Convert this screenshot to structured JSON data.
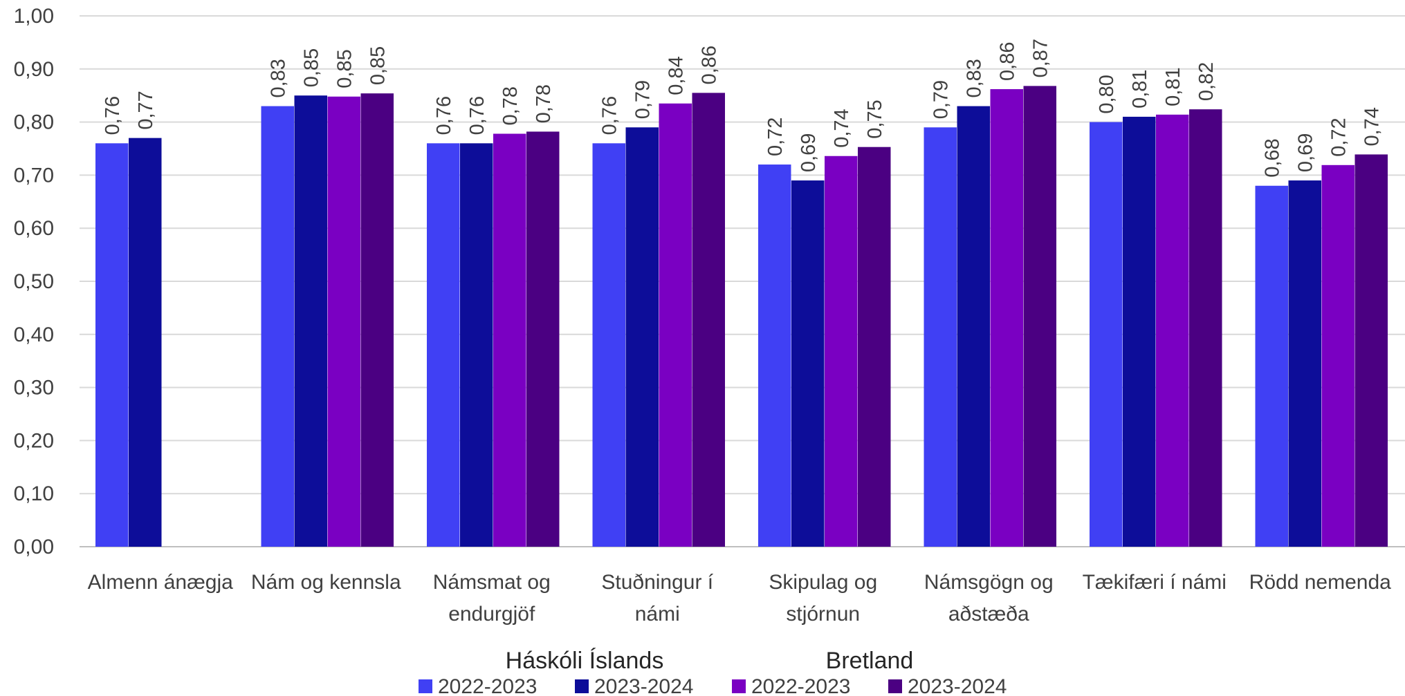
{
  "chart_data": {
    "type": "bar",
    "title": "",
    "xlabel": "",
    "ylabel": "",
    "ylim": [
      0,
      1
    ],
    "yticks": [
      "0,00",
      "0,10",
      "0,20",
      "0,30",
      "0,40",
      "0,50",
      "0,60",
      "0,70",
      "0,80",
      "0,90",
      "1,00"
    ],
    "grid": true,
    "legend_position": "bottom",
    "categories": [
      [
        "Almenn ánægja"
      ],
      [
        "Nám og kennsla"
      ],
      [
        "Námsmat og",
        "endurgjöf"
      ],
      [
        "Stuðningur í",
        "námi"
      ],
      [
        "Skipulag og",
        "stjórnun"
      ],
      [
        "Námsgögn og",
        "aðstæða"
      ],
      [
        "Tækifæri í námi"
      ],
      [
        "Rödd nemenda"
      ]
    ],
    "legend_groups": [
      "Háskóli Íslands",
      "Bretland"
    ],
    "series": [
      {
        "name": "2022-2023",
        "group": "Háskóli Íslands",
        "color": "#4040f4",
        "values": [
          0.76,
          0.83,
          0.76,
          0.76,
          0.72,
          0.79,
          0.8,
          0.68
        ],
        "labels": [
          "0,76",
          "0,83",
          "0,76",
          "0,76",
          "0,72",
          "0,79",
          "0,80",
          "0,68"
        ]
      },
      {
        "name": "2023-2024",
        "group": "Háskóli Íslands",
        "color": "#0d0d99",
        "values": [
          0.77,
          0.85,
          0.76,
          0.79,
          0.69,
          0.83,
          0.81,
          0.69
        ],
        "labels": [
          "0,77",
          "0,85",
          "0,76",
          "0,79",
          "0,69",
          "0,83",
          "0,81",
          "0,69"
        ]
      },
      {
        "name": "2022-2023",
        "group": "Bretland",
        "color": "#7a00c2",
        "values": [
          null,
          0.848,
          0.778,
          0.835,
          0.736,
          0.862,
          0.814,
          0.719
        ],
        "labels": [
          null,
          "0,85",
          "0,78",
          "0,84",
          "0,74",
          "0,86",
          "0,81",
          "0,72"
        ]
      },
      {
        "name": "2023-2024",
        "group": "Bretland",
        "color": "#4b0082",
        "values": [
          null,
          0.854,
          0.782,
          0.855,
          0.753,
          0.868,
          0.824,
          0.739
        ],
        "labels": [
          null,
          "0,85",
          "0,78",
          "0,86",
          "0,75",
          "0,87",
          "0,82",
          "0,74"
        ]
      }
    ]
  }
}
